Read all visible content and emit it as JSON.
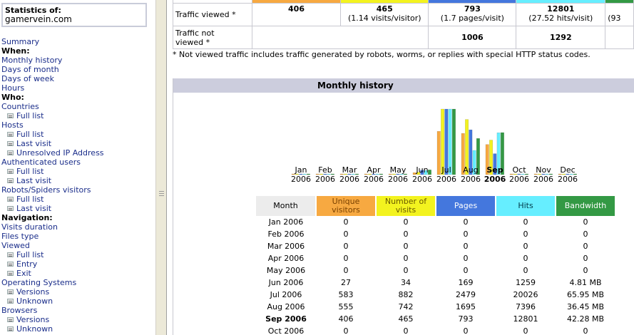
{
  "sidebar": {
    "stats_label": "Statistics of:",
    "site": "gamervein.com",
    "items": [
      {
        "type": "link",
        "label": "Summary"
      },
      {
        "type": "hdr",
        "label": "When:"
      },
      {
        "type": "link",
        "label": "Monthly history"
      },
      {
        "type": "link",
        "label": "Days of month"
      },
      {
        "type": "link",
        "label": "Days of week"
      },
      {
        "type": "link",
        "label": "Hours"
      },
      {
        "type": "hdr",
        "label": "Who:"
      },
      {
        "type": "link",
        "label": "Countries"
      },
      {
        "type": "sub",
        "label": "Full list"
      },
      {
        "type": "link",
        "label": "Hosts"
      },
      {
        "type": "sub",
        "label": "Full list"
      },
      {
        "type": "sub",
        "label": "Last visit"
      },
      {
        "type": "sub",
        "label": "Unresolved IP Address"
      },
      {
        "type": "link",
        "label": "Authenticated users"
      },
      {
        "type": "sub",
        "label": "Full list"
      },
      {
        "type": "sub",
        "label": "Last visit"
      },
      {
        "type": "link",
        "label": "Robots/Spiders visitors"
      },
      {
        "type": "sub",
        "label": "Full list"
      },
      {
        "type": "sub",
        "label": "Last visit"
      },
      {
        "type": "hdr",
        "label": "Navigation:"
      },
      {
        "type": "link",
        "label": "Visits duration"
      },
      {
        "type": "link",
        "label": "Files type"
      },
      {
        "type": "link",
        "label": "Viewed"
      },
      {
        "type": "sub",
        "label": "Full list"
      },
      {
        "type": "sub",
        "label": "Entry"
      },
      {
        "type": "sub",
        "label": "Exit"
      },
      {
        "type": "link",
        "label": "Operating Systems"
      },
      {
        "type": "sub",
        "label": "Versions"
      },
      {
        "type": "sub",
        "label": "Unknown"
      },
      {
        "type": "link",
        "label": "Browsers"
      },
      {
        "type": "sub",
        "label": "Versions"
      },
      {
        "type": "sub",
        "label": "Unknown"
      }
    ]
  },
  "summary": {
    "viewed_label": "Traffic viewed *",
    "viewed": {
      "unique": "406",
      "visits": "465",
      "visits_sub": "(1.14 visits/visitor)",
      "pages": "793",
      "pages_sub": "(1.7 pages/visit)",
      "hits": "12801",
      "hits_sub": "(27.52 hits/visit)",
      "bw_partial": "(93"
    },
    "not_viewed_label_1": "Traffic not",
    "not_viewed_label_2": "viewed *",
    "not_viewed": {
      "pages": "1006",
      "hits": "1292"
    },
    "footnote": "* Not viewed traffic includes traffic generated by robots, worms, or replies with special HTTP status codes."
  },
  "monthly": {
    "title": "Monthly history",
    "headers": {
      "month": "Month",
      "unique_1": "Unique",
      "unique_2": "visitors",
      "visits_1": "Number of",
      "visits_2": "visits",
      "pages": "Pages",
      "hits": "Hits",
      "bandwidth": "Bandwidth"
    },
    "rows": [
      {
        "month": "Jan 2006",
        "unique": "0",
        "visits": "0",
        "pages": "0",
        "hits": "0",
        "bandwidth": "0",
        "current": false
      },
      {
        "month": "Feb 2006",
        "unique": "0",
        "visits": "0",
        "pages": "0",
        "hits": "0",
        "bandwidth": "0",
        "current": false
      },
      {
        "month": "Mar 2006",
        "unique": "0",
        "visits": "0",
        "pages": "0",
        "hits": "0",
        "bandwidth": "0",
        "current": false
      },
      {
        "month": "Apr 2006",
        "unique": "0",
        "visits": "0",
        "pages": "0",
        "hits": "0",
        "bandwidth": "0",
        "current": false
      },
      {
        "month": "May 2006",
        "unique": "0",
        "visits": "0",
        "pages": "0",
        "hits": "0",
        "bandwidth": "0",
        "current": false
      },
      {
        "month": "Jun 2006",
        "unique": "27",
        "visits": "34",
        "pages": "169",
        "hits": "1259",
        "bandwidth": "4.81 MB",
        "current": false
      },
      {
        "month": "Jul 2006",
        "unique": "583",
        "visits": "882",
        "pages": "2479",
        "hits": "20026",
        "bandwidth": "65.95 MB",
        "current": false
      },
      {
        "month": "Aug 2006",
        "unique": "555",
        "visits": "742",
        "pages": "1695",
        "hits": "7396",
        "bandwidth": "36.45 MB",
        "current": false
      },
      {
        "month": "Sep 2006",
        "unique": "406",
        "visits": "465",
        "pages": "793",
        "hits": "12801",
        "bandwidth": "42.28 MB",
        "current": true
      },
      {
        "month": "Oct 2006",
        "unique": "0",
        "visits": "0",
        "pages": "0",
        "hits": "0",
        "bandwidth": "0",
        "current": false
      }
    ],
    "chart_labels": [
      {
        "m": "Jan",
        "y": "2006",
        "current": false
      },
      {
        "m": "Feb",
        "y": "2006",
        "current": false
      },
      {
        "m": "Mar",
        "y": "2006",
        "current": false
      },
      {
        "m": "Apr",
        "y": "2006",
        "current": false
      },
      {
        "m": "May",
        "y": "2006",
        "current": false
      },
      {
        "m": "Jun",
        "y": "2006",
        "current": false
      },
      {
        "m": "Jul",
        "y": "2006",
        "current": false
      },
      {
        "m": "Aug",
        "y": "2006",
        "current": false
      },
      {
        "m": "Sep",
        "y": "2006",
        "current": true
      },
      {
        "m": "Oct",
        "y": "2006",
        "current": false
      },
      {
        "m": "Nov",
        "y": "2006",
        "current": false
      },
      {
        "m": "Dec",
        "y": "2006",
        "current": false
      }
    ]
  },
  "chart_data": {
    "type": "bar",
    "categories": [
      "Jan 2006",
      "Feb 2006",
      "Mar 2006",
      "Apr 2006",
      "May 2006",
      "Jun 2006",
      "Jul 2006",
      "Aug 2006",
      "Sep 2006",
      "Oct 2006",
      "Nov 2006",
      "Dec 2006"
    ],
    "series": [
      {
        "name": "Unique visitors",
        "values": [
          0,
          0,
          0,
          0,
          0,
          27,
          583,
          555,
          406,
          0,
          0,
          0
        ]
      },
      {
        "name": "Number of visits",
        "values": [
          0,
          0,
          0,
          0,
          0,
          34,
          882,
          742,
          465,
          0,
          0,
          0
        ]
      },
      {
        "name": "Pages",
        "values": [
          0,
          0,
          0,
          0,
          0,
          169,
          2479,
          1695,
          793,
          0,
          0,
          0
        ]
      },
      {
        "name": "Hits",
        "values": [
          0,
          0,
          0,
          0,
          0,
          1259,
          20026,
          7396,
          12801,
          0,
          0,
          0
        ]
      },
      {
        "name": "Bandwidth",
        "values": [
          0,
          0,
          0,
          0,
          0,
          4.81,
          65.95,
          36.45,
          42.28,
          0,
          0,
          0
        ]
      }
    ],
    "colors": [
      "#f7a941",
      "#f3f31f",
      "#4477dd",
      "#66eeff",
      "#339944"
    ]
  }
}
